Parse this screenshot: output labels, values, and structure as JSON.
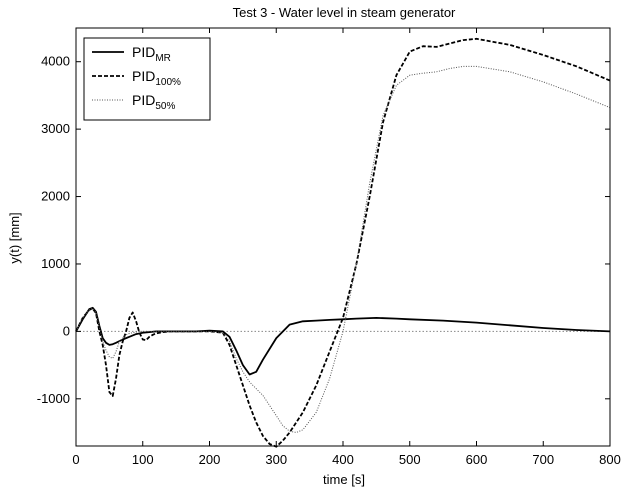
{
  "chart_data": {
    "type": "line",
    "title": "Test 3 - Water level in steam generator",
    "xlabel": "time [s]",
    "ylabel": "y(t) [mm]",
    "xlim": [
      0,
      800
    ],
    "ylim": [
      -1700,
      4500
    ],
    "xticks": [
      0,
      100,
      200,
      300,
      400,
      500,
      600,
      700,
      800
    ],
    "yticks": [
      -1000,
      0,
      1000,
      2000,
      3000,
      4000
    ],
    "grid": false,
    "legend_position": "top-left",
    "reference_line": {
      "y": 0,
      "style": "dotted"
    },
    "series": [
      {
        "name_base": "PID",
        "name_sub": "MR",
        "style": "solid",
        "color": "#000000",
        "x": [
          0,
          10,
          20,
          25,
          30,
          35,
          40,
          45,
          50,
          55,
          60,
          70,
          80,
          90,
          100,
          110,
          120,
          140,
          160,
          180,
          200,
          220,
          230,
          240,
          250,
          260,
          270,
          280,
          300,
          320,
          340,
          360,
          380,
          400,
          420,
          450,
          480,
          500,
          550,
          600,
          650,
          700,
          750,
          800
        ],
        "y": [
          0,
          180,
          330,
          350,
          290,
          80,
          -100,
          -170,
          -200,
          -190,
          -170,
          -120,
          -80,
          -40,
          -20,
          -10,
          0,
          0,
          0,
          0,
          10,
          0,
          -80,
          -280,
          -500,
          -640,
          -600,
          -420,
          -100,
          100,
          150,
          160,
          170,
          180,
          190,
          200,
          190,
          180,
          160,
          130,
          90,
          50,
          20,
          0
        ]
      },
      {
        "name_base": "PID",
        "name_sub": "100%",
        "style": "dashed",
        "color": "#000000",
        "x": [
          0,
          10,
          20,
          25,
          30,
          35,
          40,
          45,
          50,
          55,
          60,
          65,
          70,
          75,
          80,
          85,
          90,
          95,
          100,
          105,
          110,
          115,
          120,
          130,
          140,
          160,
          180,
          200,
          220,
          230,
          240,
          250,
          260,
          270,
          280,
          290,
          300,
          310,
          320,
          340,
          360,
          380,
          400,
          420,
          440,
          460,
          480,
          500,
          520,
          540,
          560,
          580,
          600,
          650,
          700,
          750,
          800
        ],
        "y": [
          0,
          200,
          320,
          340,
          270,
          0,
          -200,
          -500,
          -900,
          -960,
          -700,
          -350,
          -150,
          0,
          200,
          280,
          150,
          -20,
          -120,
          -130,
          -80,
          -50,
          -30,
          -10,
          0,
          0,
          0,
          0,
          -20,
          -200,
          -500,
          -800,
          -1100,
          -1350,
          -1550,
          -1670,
          -1710,
          -1620,
          -1500,
          -1200,
          -800,
          -300,
          200,
          1000,
          2000,
          3100,
          3800,
          4150,
          4230,
          4220,
          4270,
          4320,
          4340,
          4250,
          4100,
          3930,
          3720
        ]
      },
      {
        "name_base": "PID",
        "name_sub": "50%",
        "style": "dotted",
        "color": "#555555",
        "x": [
          0,
          10,
          20,
          25,
          30,
          35,
          40,
          45,
          50,
          55,
          60,
          65,
          70,
          75,
          80,
          85,
          90,
          95,
          100,
          110,
          120,
          140,
          160,
          180,
          200,
          220,
          230,
          240,
          250,
          260,
          270,
          280,
          290,
          300,
          310,
          320,
          330,
          340,
          360,
          380,
          400,
          420,
          440,
          460,
          480,
          500,
          520,
          540,
          560,
          580,
          600,
          650,
          700,
          750,
          800
        ],
        "y": [
          0,
          200,
          320,
          340,
          280,
          60,
          -150,
          -280,
          -380,
          -400,
          -300,
          -150,
          -100,
          -50,
          -30,
          -20,
          -10,
          0,
          0,
          0,
          0,
          0,
          0,
          0,
          0,
          -20,
          -150,
          -400,
          -600,
          -750,
          -850,
          -950,
          -1100,
          -1250,
          -1400,
          -1480,
          -1500,
          -1460,
          -1200,
          -700,
          0,
          1000,
          2200,
          3200,
          3650,
          3800,
          3830,
          3850,
          3900,
          3930,
          3930,
          3850,
          3700,
          3520,
          3320
        ]
      }
    ]
  }
}
